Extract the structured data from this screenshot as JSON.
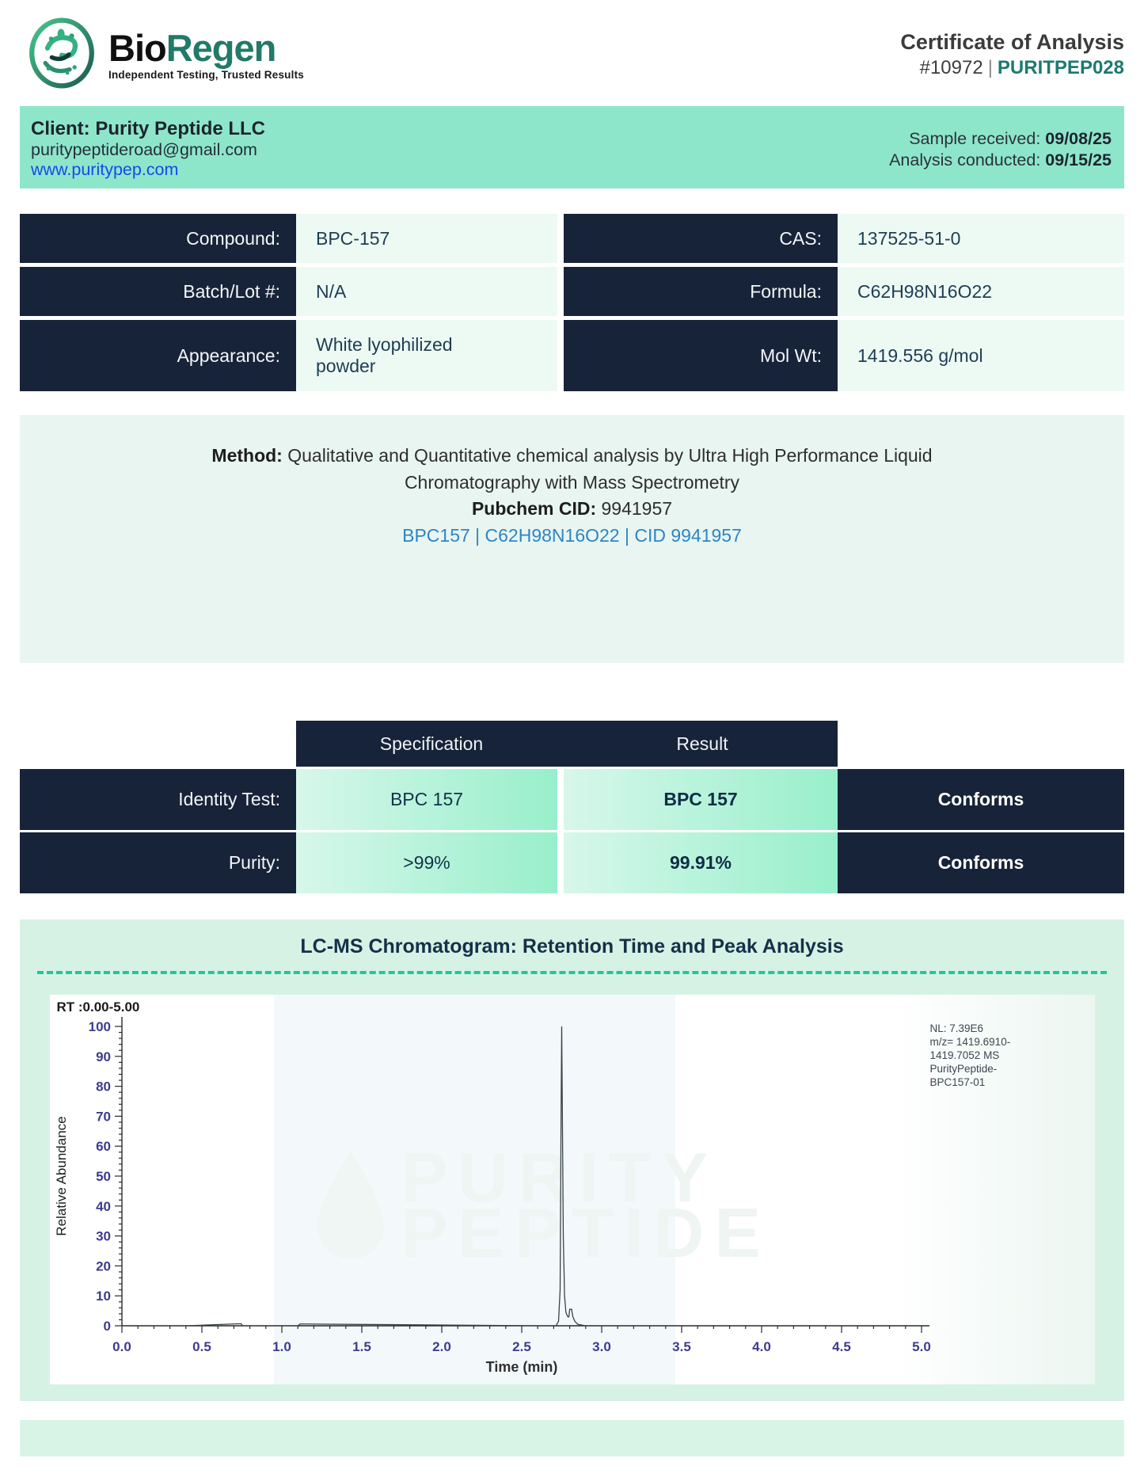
{
  "brand": {
    "bio": "Bio",
    "regen": "Regen",
    "tagline": "Independent Testing, Trusted Results"
  },
  "header": {
    "title": "Certificate of Analysis",
    "number": "#10972",
    "divider": "|",
    "code": "PURITPEP028"
  },
  "client": {
    "name": "Client: Purity Peptide LLC",
    "email": "puritypeptideroad@gmail.com",
    "website": "www.puritypep.com",
    "received_label": "Sample received: ",
    "received_date": "09/08/25",
    "conducted_label": "Analysis conducted: ",
    "conducted_date": "09/15/25"
  },
  "compound_table": {
    "rows": [
      {
        "label1": "Compound:",
        "value1": "BPC-157",
        "label2": "CAS:",
        "value2": "137525-51-0"
      },
      {
        "label1": "Batch/Lot #:",
        "value1": "N/A",
        "label2": "Formula:",
        "value2": "C62H98N16O22"
      },
      {
        "label1": "Appearance:",
        "value1": "White lyophilized powder",
        "label2": "Mol Wt:",
        "value2": "1419.556 g/mol"
      }
    ]
  },
  "method": {
    "label": "Method: ",
    "line1": "Qualitative and Quantitative chemical analysis by Ultra High Performance Liquid",
    "line2": "Chromatography with Mass Spectrometry",
    "cid_label": "Pubchem CID: ",
    "cid_value": "9941957",
    "link": "BPC157 | C62H98N16O22 | CID 9941957"
  },
  "results_table": {
    "headers": {
      "spec": "Specification",
      "result": "Result"
    },
    "rows": [
      {
        "label": "Identity Test:",
        "spec": "BPC 157",
        "result": "BPC 157",
        "status": "Conforms"
      },
      {
        "label": "Purity:",
        "spec": ">99%",
        "result": "99.91%",
        "status": "Conforms"
      }
    ]
  },
  "chromatogram": {
    "section_title": "LC-MS Chromatogram: Retention Time and Peak Analysis",
    "rt_label": "RT :0.00-5.00",
    "watermark": {
      "line1": "PURITY",
      "line2": "PEPTIDE"
    },
    "chart_data": {
      "type": "line",
      "xlabel": "Time (min)",
      "ylabel": "Relative Abundance",
      "xlim": [
        0,
        5
      ],
      "ylim": [
        0,
        100
      ],
      "x_major_tick_step": 0.5,
      "x_minor_tick_step": 0.1,
      "y_major_tick_step": 10,
      "y_minor_tick_step": 2,
      "x_tick_labels": [
        "0.0",
        "0.5",
        "1.0",
        "1.5",
        "2.0",
        "2.5",
        "3.0",
        "3.5",
        "4.0",
        "4.5",
        "5.0"
      ],
      "y_tick_labels": [
        "0",
        "10",
        "20",
        "30",
        "40",
        "50",
        "60",
        "70",
        "80",
        "90",
        "100"
      ],
      "grid": false,
      "legend": "none",
      "peak_rt_min": 2.75,
      "peak_height": 100,
      "series": [
        {
          "name": "PurityPeptide-BPC157-01",
          "x": [
            0.0,
            0.4,
            0.745,
            0.755,
            1.1,
            1.115,
            2.6,
            2.715,
            2.73,
            2.74,
            2.746,
            2.75,
            2.754,
            2.76,
            2.768,
            2.776,
            2.788,
            2.795,
            2.8,
            2.812,
            2.82,
            2.832,
            2.85,
            2.9,
            5.0
          ],
          "y": [
            0,
            0,
            0.7,
            0,
            0,
            0.6,
            0,
            0,
            1.5,
            12,
            70,
            100,
            72,
            30,
            10,
            4.5,
            3,
            3,
            5.5,
            5.5,
            3,
            1.5,
            0.5,
            0,
            0
          ]
        }
      ],
      "annotation_lines": [
        "NL: 7.39E6",
        "m/z= 1419.6910-",
        "1419.7052 MS",
        "PurityPeptide-",
        "BPC157-01"
      ]
    }
  }
}
